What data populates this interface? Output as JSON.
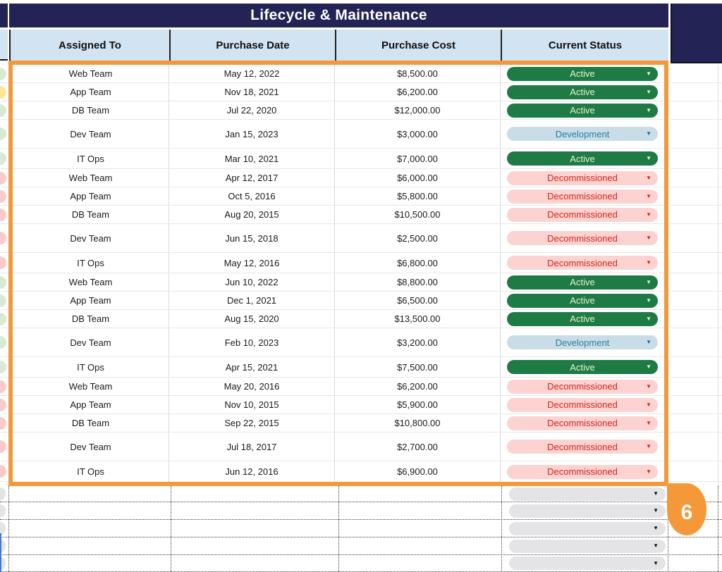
{
  "header": {
    "title": "Lifecycle & Maintenance"
  },
  "columns": [
    "Assigned To",
    "Purchase Date",
    "Purchase Cost",
    "Current Status"
  ],
  "rows": [
    {
      "assigned_to": "Web Team",
      "purchase_date": "May 12, 2022",
      "purchase_cost": "$8,500.00",
      "status": "Active",
      "size": "normal",
      "edge": "green"
    },
    {
      "assigned_to": "App Team",
      "purchase_date": "Nov 18, 2021",
      "purchase_cost": "$6,200.00",
      "status": "Active",
      "size": "normal",
      "edge": "yellow"
    },
    {
      "assigned_to": "DB Team",
      "purchase_date": "Jul 22, 2020",
      "purchase_cost": "$12,000.00",
      "status": "Active",
      "size": "normal",
      "edge": "green"
    },
    {
      "assigned_to": "Dev Team",
      "purchase_date": "Jan 15, 2023",
      "purchase_cost": "$3,000.00",
      "status": "Development",
      "size": "tall",
      "edge": "green"
    },
    {
      "assigned_to": "IT Ops",
      "purchase_date": "Mar 10, 2021",
      "purchase_cost": "$7,000.00",
      "status": "Active",
      "size": "med",
      "edge": "green"
    },
    {
      "assigned_to": "Web Team",
      "purchase_date": "Apr 12, 2017",
      "purchase_cost": "$6,000.00",
      "status": "Decommissioned",
      "size": "normal",
      "edge": "pink"
    },
    {
      "assigned_to": "App Team",
      "purchase_date": "Oct 5, 2016",
      "purchase_cost": "$5,800.00",
      "status": "Decommissioned",
      "size": "normal",
      "edge": "pink"
    },
    {
      "assigned_to": "DB Team",
      "purchase_date": "Aug 20, 2015",
      "purchase_cost": "$10,500.00",
      "status": "Decommissioned",
      "size": "normal",
      "edge": "pink"
    },
    {
      "assigned_to": "Dev Team",
      "purchase_date": "Jun 15, 2018",
      "purchase_cost": "$2,500.00",
      "status": "Decommissioned",
      "size": "tall",
      "edge": "pink"
    },
    {
      "assigned_to": "IT Ops",
      "purchase_date": "May 12, 2016",
      "purchase_cost": "$6,800.00",
      "status": "Decommissioned",
      "size": "med",
      "edge": "pink"
    },
    {
      "assigned_to": "Web Team",
      "purchase_date": "Jun 10, 2022",
      "purchase_cost": "$8,800.00",
      "status": "Active",
      "size": "normal",
      "edge": "green"
    },
    {
      "assigned_to": "App Team",
      "purchase_date": "Dec 1, 2021",
      "purchase_cost": "$6,500.00",
      "status": "Active",
      "size": "normal",
      "edge": "green"
    },
    {
      "assigned_to": "DB Team",
      "purchase_date": "Aug 15, 2020",
      "purchase_cost": "$13,500.00",
      "status": "Active",
      "size": "normal",
      "edge": "green"
    },
    {
      "assigned_to": "Dev Team",
      "purchase_date": "Feb 10, 2023",
      "purchase_cost": "$3,200.00",
      "status": "Development",
      "size": "tall",
      "edge": "green"
    },
    {
      "assigned_to": "IT Ops",
      "purchase_date": "Apr 15, 2021",
      "purchase_cost": "$7,500.00",
      "status": "Active",
      "size": "med",
      "edge": "green"
    },
    {
      "assigned_to": "Web Team",
      "purchase_date": "May 20, 2016",
      "purchase_cost": "$6,200.00",
      "status": "Decommissioned",
      "size": "normal",
      "edge": "pink"
    },
    {
      "assigned_to": "App Team",
      "purchase_date": "Nov 10, 2015",
      "purchase_cost": "$5,900.00",
      "status": "Decommissioned",
      "size": "normal",
      "edge": "pink"
    },
    {
      "assigned_to": "DB Team",
      "purchase_date": "Sep 22, 2015",
      "purchase_cost": "$10,800.00",
      "status": "Decommissioned",
      "size": "normal",
      "edge": "pink"
    },
    {
      "assigned_to": "Dev Team",
      "purchase_date": "Jul 18, 2017",
      "purchase_cost": "$2,700.00",
      "status": "Decommissioned",
      "size": "tall",
      "edge": "pink"
    },
    {
      "assigned_to": "IT Ops",
      "purchase_date": "Jun 12, 2016",
      "purchase_cost": "$6,900.00",
      "status": "Decommissioned",
      "size": "med",
      "edge": "pink"
    }
  ],
  "status_options_shown": [
    "Active",
    "Development",
    "Decommissioned"
  ],
  "empty_dropdown_rows": 5,
  "marker": {
    "label": "6"
  },
  "icons": {
    "dropdown_arrow": "▼"
  },
  "colors": {
    "navy": "#232356",
    "header_blue": "#d2e3f2",
    "selection_orange": "#f5983a",
    "active_bg": "#1e7b45",
    "active_text": "#e9f3cf",
    "development_bg": "#c8dde7",
    "development_text": "#2d7e9d",
    "decommissioned_bg": "#fcd3d0",
    "decommissioned_text": "#d1271c",
    "empty_pill_bg": "#e4e4e7",
    "edge_green": "#d9ead3",
    "edge_yellow": "#ffe599",
    "edge_pink": "#f6cbc8"
  }
}
